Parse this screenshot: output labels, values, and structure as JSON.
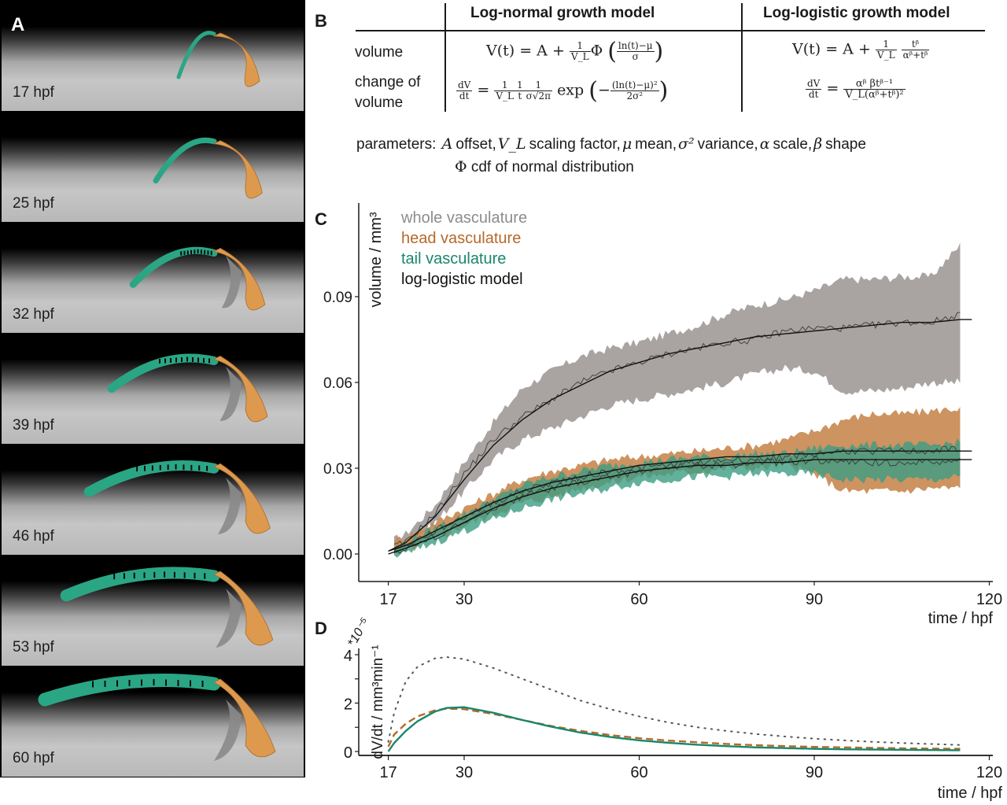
{
  "panel_labels": {
    "a": "A",
    "b": "B",
    "c": "C",
    "d": "D"
  },
  "panelA": {
    "frames": [
      {
        "label": "17 hpf",
        "stage": 0.0
      },
      {
        "label": "25 hpf",
        "stage": 0.17
      },
      {
        "label": "32 hpf",
        "stage": 0.34
      },
      {
        "label": "39 hpf",
        "stage": 0.5
      },
      {
        "label": "46 hpf",
        "stage": 0.67
      },
      {
        "label": "53 hpf",
        "stage": 0.84
      },
      {
        "label": "60 hpf",
        "stage": 1.0
      }
    ],
    "colors": {
      "tail": "#2aa685",
      "head": "#dd9a4e",
      "other": "#8a8a8a"
    }
  },
  "panelB": {
    "col_headers": [
      "Log-normal growth model",
      "Log-logistic growth model"
    ],
    "row_labels": [
      "volume",
      "change of",
      "volume"
    ],
    "formulas": {
      "lognormal_volume": {
        "lhs": "V(t) = A +",
        "coef_num": "1",
        "coef_den": "V_L",
        "func": "Φ",
        "arg_num": "ln(t)−μ",
        "arg_den": "σ"
      },
      "loglogistic_volume": {
        "lhs": "V(t) = A +",
        "coef_num": "1",
        "coef_den": "V_L",
        "frac_num": "tᵝ",
        "frac_den": "αᵝ+tᵝ"
      },
      "lognormal_change": {
        "lhs_num": "dV",
        "lhs_den": "dt",
        "eq": "=",
        "f1_num": "1",
        "f1_den": "V_L",
        "f2_num": "1",
        "f2_den": "t",
        "f3_num": "1",
        "f3_den": "σ√2π",
        "exp": "exp",
        "arg_num": "(ln(t)−μ)²",
        "arg_den": "2σ²",
        "minus": "−"
      },
      "loglogistic_change": {
        "lhs_num": "dV",
        "lhs_den": "dt",
        "eq": "=",
        "rhs_num": "αᵝ βtᵝ⁻¹",
        "rhs_den": "V_L(αᵝ+tᵝ)²"
      }
    },
    "parameters_prefix": "parameters:",
    "parameters": [
      {
        "symbol": "A",
        "desc": "offset,"
      },
      {
        "symbol": "V_L",
        "desc": "scaling factor,"
      },
      {
        "symbol": "μ",
        "desc": "mean,"
      },
      {
        "symbol": "σ²",
        "desc": "variance,"
      },
      {
        "symbol": "α",
        "desc": "scale,"
      },
      {
        "symbol": "β",
        "desc": "shape"
      }
    ],
    "parameters_line2": {
      "symbol": "Φ",
      "desc": "cdf of normal distribution"
    }
  },
  "chart_data": [
    {
      "id": "C",
      "type": "line",
      "title": "",
      "xlabel": "time / hpf",
      "ylabel": "volume / mm³",
      "xlim": [
        15,
        121
      ],
      "ylim": [
        -0.01,
        0.115
      ],
      "xticks": [
        17,
        30,
        60,
        90,
        120
      ],
      "yticks": [
        0.0,
        0.03,
        0.06,
        0.09
      ],
      "ytick_labels": [
        "0.00",
        "0.03",
        "0.06",
        "0.09"
      ],
      "legend": [
        {
          "label": "whole vasculature",
          "color": "#8c8c8c"
        },
        {
          "label": "head vasculature",
          "color": "#b5692a"
        },
        {
          "label": "tail vasculature",
          "color": "#19876a"
        },
        {
          "label": "log-logistic model",
          "color": "#111111"
        }
      ],
      "legend_position": "top-left",
      "x": [
        17,
        20,
        25,
        30,
        35,
        40,
        45,
        50,
        55,
        60,
        65,
        70,
        75,
        80,
        85,
        90,
        95,
        100,
        105,
        110,
        115
      ],
      "series": [
        {
          "name": "whole vasculature",
          "color": "#a9a4a2",
          "mean": [
            0.002,
            0.004,
            0.014,
            0.028,
            0.04,
            0.048,
            0.054,
            0.06,
            0.064,
            0.067,
            0.07,
            0.072,
            0.074,
            0.075,
            0.078,
            0.079,
            0.079,
            0.08,
            0.081,
            0.081,
            0.084
          ],
          "lower": [
            0.0,
            0.003,
            0.011,
            0.022,
            0.033,
            0.04,
            0.044,
            0.048,
            0.052,
            0.054,
            0.056,
            0.058,
            0.06,
            0.063,
            0.065,
            0.064,
            0.057,
            0.057,
            0.058,
            0.06,
            0.06
          ],
          "upper": [
            0.004,
            0.007,
            0.017,
            0.032,
            0.046,
            0.058,
            0.064,
            0.069,
            0.072,
            0.074,
            0.077,
            0.08,
            0.084,
            0.087,
            0.089,
            0.092,
            0.096,
            0.096,
            0.097,
            0.097,
            0.108
          ],
          "model": [
            0.001,
            0.004,
            0.013,
            0.026,
            0.038,
            0.047,
            0.054,
            0.059,
            0.064,
            0.067,
            0.07,
            0.072,
            0.074,
            0.076,
            0.077,
            0.078,
            0.079,
            0.08,
            0.081,
            0.081,
            0.082
          ]
        },
        {
          "name": "head vasculature",
          "color": "#c98a52",
          "mean": [
            0.001,
            0.003,
            0.008,
            0.013,
            0.018,
            0.022,
            0.025,
            0.027,
            0.029,
            0.03,
            0.031,
            0.032,
            0.033,
            0.033,
            0.034,
            0.035,
            0.036,
            0.036,
            0.036,
            0.036,
            0.037
          ],
          "lower": [
            -0.002,
            0.001,
            0.005,
            0.01,
            0.014,
            0.018,
            0.02,
            0.023,
            0.025,
            0.027,
            0.028,
            0.029,
            0.03,
            0.03,
            0.031,
            0.028,
            0.022,
            0.022,
            0.022,
            0.023,
            0.023
          ],
          "upper": [
            0.004,
            0.006,
            0.011,
            0.016,
            0.021,
            0.026,
            0.029,
            0.031,
            0.033,
            0.034,
            0.035,
            0.036,
            0.037,
            0.038,
            0.04,
            0.043,
            0.047,
            0.049,
            0.049,
            0.05,
            0.051
          ],
          "model": [
            0.001,
            0.003,
            0.008,
            0.013,
            0.018,
            0.022,
            0.025,
            0.027,
            0.029,
            0.031,
            0.032,
            0.033,
            0.034,
            0.034,
            0.035,
            0.035,
            0.036,
            0.036,
            0.036,
            0.036,
            0.036
          ]
        },
        {
          "name": "tail vasculature",
          "color": "#3c9e83",
          "mean": [
            0.0,
            0.002,
            0.006,
            0.011,
            0.016,
            0.02,
            0.023,
            0.025,
            0.027,
            0.029,
            0.03,
            0.031,
            0.031,
            0.032,
            0.032,
            0.033,
            0.032,
            0.032,
            0.032,
            0.032,
            0.033
          ],
          "lower": [
            -0.001,
            0.0,
            0.004,
            0.008,
            0.012,
            0.016,
            0.019,
            0.021,
            0.023,
            0.025,
            0.026,
            0.027,
            0.027,
            0.028,
            0.028,
            0.028,
            0.026,
            0.026,
            0.026,
            0.026,
            0.027
          ],
          "upper": [
            0.001,
            0.004,
            0.009,
            0.014,
            0.019,
            0.024,
            0.027,
            0.029,
            0.031,
            0.032,
            0.033,
            0.034,
            0.034,
            0.035,
            0.035,
            0.037,
            0.038,
            0.038,
            0.038,
            0.038,
            0.039
          ],
          "model": [
            0.0,
            0.002,
            0.006,
            0.011,
            0.016,
            0.02,
            0.023,
            0.025,
            0.027,
            0.029,
            0.03,
            0.031,
            0.031,
            0.032,
            0.032,
            0.033,
            0.033,
            0.033,
            0.033,
            0.033,
            0.033
          ]
        }
      ]
    },
    {
      "id": "D",
      "type": "line",
      "title": "",
      "xlabel": "time / hpf",
      "ylabel": "dV/dt / mm³min⁻¹",
      "y_multiplier": "*10⁻⁵",
      "xlim": [
        15,
        121
      ],
      "ylim": [
        -0.2,
        4.3
      ],
      "xticks": [
        17,
        30,
        60,
        90,
        120
      ],
      "yticks": [
        0,
        1,
        2,
        3,
        4
      ],
      "ytick_labels": [
        "0",
        "",
        "2",
        "",
        "4"
      ],
      "x": [
        17,
        18,
        20,
        22,
        25,
        27,
        30,
        35,
        40,
        45,
        50,
        55,
        60,
        65,
        70,
        75,
        80,
        85,
        90,
        95,
        100,
        105,
        110,
        115
      ],
      "series": [
        {
          "name": "whole vasculature",
          "style": "dotted",
          "color": "#555555",
          "values": [
            0.4,
            1.6,
            2.9,
            3.5,
            3.85,
            3.9,
            3.82,
            3.45,
            3.0,
            2.55,
            2.1,
            1.75,
            1.45,
            1.2,
            1.0,
            0.85,
            0.72,
            0.62,
            0.53,
            0.46,
            0.4,
            0.35,
            0.31,
            0.27
          ]
        },
        {
          "name": "head vasculature",
          "style": "dashed",
          "color": "#b5692a",
          "values": [
            0.2,
            0.7,
            1.15,
            1.45,
            1.7,
            1.77,
            1.75,
            1.55,
            1.3,
            1.05,
            0.85,
            0.68,
            0.55,
            0.45,
            0.38,
            0.31,
            0.26,
            0.22,
            0.19,
            0.17,
            0.15,
            0.13,
            0.12,
            0.11
          ]
        },
        {
          "name": "tail vasculature",
          "style": "solid",
          "color": "#19876a",
          "values": [
            0.0,
            0.35,
            0.85,
            1.25,
            1.65,
            1.8,
            1.83,
            1.6,
            1.3,
            1.02,
            0.78,
            0.6,
            0.46,
            0.36,
            0.28,
            0.22,
            0.17,
            0.14,
            0.11,
            0.09,
            0.08,
            0.07,
            0.06,
            0.05
          ]
        }
      ]
    }
  ]
}
